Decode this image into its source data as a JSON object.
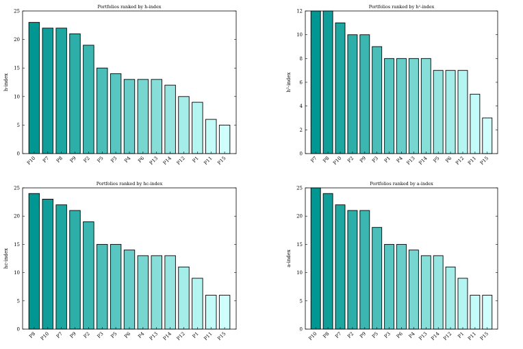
{
  "chart_data": [
    {
      "type": "bar",
      "title": "Portfolios ranked by h-index",
      "ylabel": "h-index",
      "ylim": [
        0,
        25
      ],
      "yticks": [
        0,
        5,
        10,
        15,
        20,
        25
      ],
      "categories": [
        "P10",
        "P7",
        "P8",
        "P9",
        "P2",
        "P5",
        "P3",
        "P4",
        "P6",
        "P13",
        "P14",
        "P12",
        "P1",
        "P11",
        "P15"
      ],
      "values": [
        23,
        22,
        22,
        21,
        19,
        15,
        14,
        13,
        13,
        13,
        12,
        10,
        9,
        6,
        5
      ],
      "grid": false,
      "colors": [
        "#009691",
        "#0f9e99",
        "#1ea6a1",
        "#2daea9",
        "#3cb6b1",
        "#4bbeb9",
        "#5ac6c1",
        "#69cec9",
        "#78d6d1",
        "#87ded9",
        "#96e5e1",
        "#a5ede9",
        "#b4f4f1",
        "#c3fbf8",
        "#cffffd"
      ]
    },
    {
      "type": "bar",
      "title": "Portfolios ranked by h²-index",
      "ylabel": "h²-index",
      "ylim": [
        0,
        12
      ],
      "yticks": [
        0,
        2,
        4,
        6,
        8,
        10,
        12
      ],
      "categories": [
        "P7",
        "P8",
        "P10",
        "P2",
        "P9",
        "P3",
        "P1",
        "P4",
        "P13",
        "P14",
        "P5",
        "P6",
        "P12",
        "P11",
        "P15"
      ],
      "values": [
        12,
        12,
        11,
        10,
        10,
        9,
        8,
        8,
        8,
        8,
        7,
        7,
        7,
        5,
        3
      ],
      "grid": false,
      "colors": [
        "#009691",
        "#0f9e99",
        "#1ea6a1",
        "#2daea9",
        "#3cb6b1",
        "#4bbeb9",
        "#5ac6c1",
        "#69cec9",
        "#78d6d1",
        "#87ded9",
        "#96e5e1",
        "#a5ede9",
        "#b4f4f1",
        "#c3fbf8",
        "#cffffd"
      ]
    },
    {
      "type": "bar",
      "title": "Portfolios ranked by hc-index",
      "ylabel": "hc-index",
      "ylim": [
        0,
        25
      ],
      "yticks": [
        0,
        5,
        10,
        15,
        20,
        25
      ],
      "categories": [
        "P8",
        "P10",
        "P7",
        "P9",
        "P2",
        "P3",
        "P5",
        "P6",
        "P4",
        "P13",
        "P14",
        "P12",
        "P1",
        "P11",
        "P15"
      ],
      "values": [
        24,
        23,
        22,
        21,
        19,
        15,
        15,
        14,
        13,
        13,
        13,
        11,
        9,
        6,
        6
      ],
      "grid": false,
      "colors": [
        "#009691",
        "#0f9e99",
        "#1ea6a1",
        "#2daea9",
        "#3cb6b1",
        "#4bbeb9",
        "#5ac6c1",
        "#69cec9",
        "#78d6d1",
        "#87ded9",
        "#96e5e1",
        "#a5ede9",
        "#b4f4f1",
        "#c3fbf8",
        "#cffffd"
      ]
    },
    {
      "type": "bar",
      "title": "Portfolios ranked by a-index",
      "ylabel": "a-index",
      "ylim": [
        0,
        25
      ],
      "yticks": [
        0,
        5,
        10,
        15,
        20,
        25
      ],
      "categories": [
        "P10",
        "P8",
        "P7",
        "P2",
        "P9",
        "P5",
        "P3",
        "P6",
        "P4",
        "P13",
        "P14",
        "P12",
        "P1",
        "P11",
        "P15"
      ],
      "values": [
        25,
        24,
        22,
        21,
        21,
        18,
        15,
        15,
        14,
        13,
        13,
        11,
        9,
        6,
        6
      ],
      "grid": false,
      "colors": [
        "#009691",
        "#0f9e99",
        "#1ea6a1",
        "#2daea9",
        "#3cb6b1",
        "#4bbeb9",
        "#5ac6c1",
        "#69cec9",
        "#78d6d1",
        "#87ded9",
        "#96e5e1",
        "#a5ede9",
        "#b4f4f1",
        "#c3fbf8",
        "#cffffd"
      ]
    }
  ]
}
